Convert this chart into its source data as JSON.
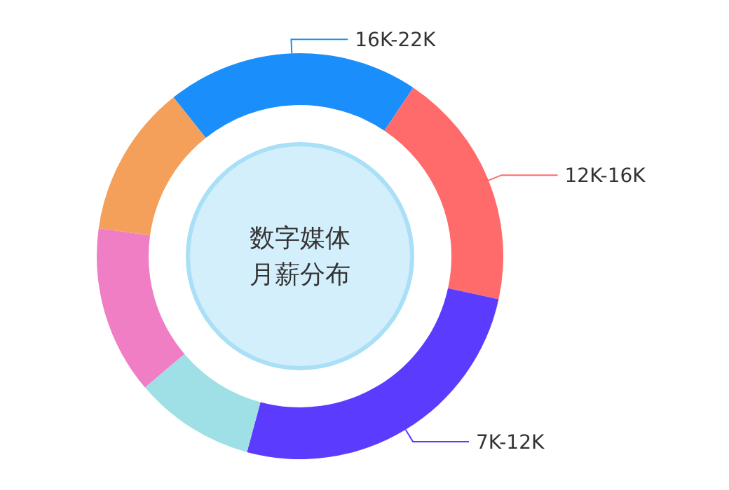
{
  "chart_data": {
    "type": "donut",
    "title": "数字媒体月薪分布",
    "categories": [
      "16K-22K",
      "12K-16K",
      "7K-12K",
      null,
      null,
      null
    ],
    "values": [
      20.1,
      19.0,
      25.8,
      9.6,
      13.4,
      12.1
    ],
    "colors": [
      "#1a8ffb",
      "#ff6b6b",
      "#5b3cff",
      "#9ee0e6",
      "#f07ec4",
      "#f5a05a"
    ]
  }
}
